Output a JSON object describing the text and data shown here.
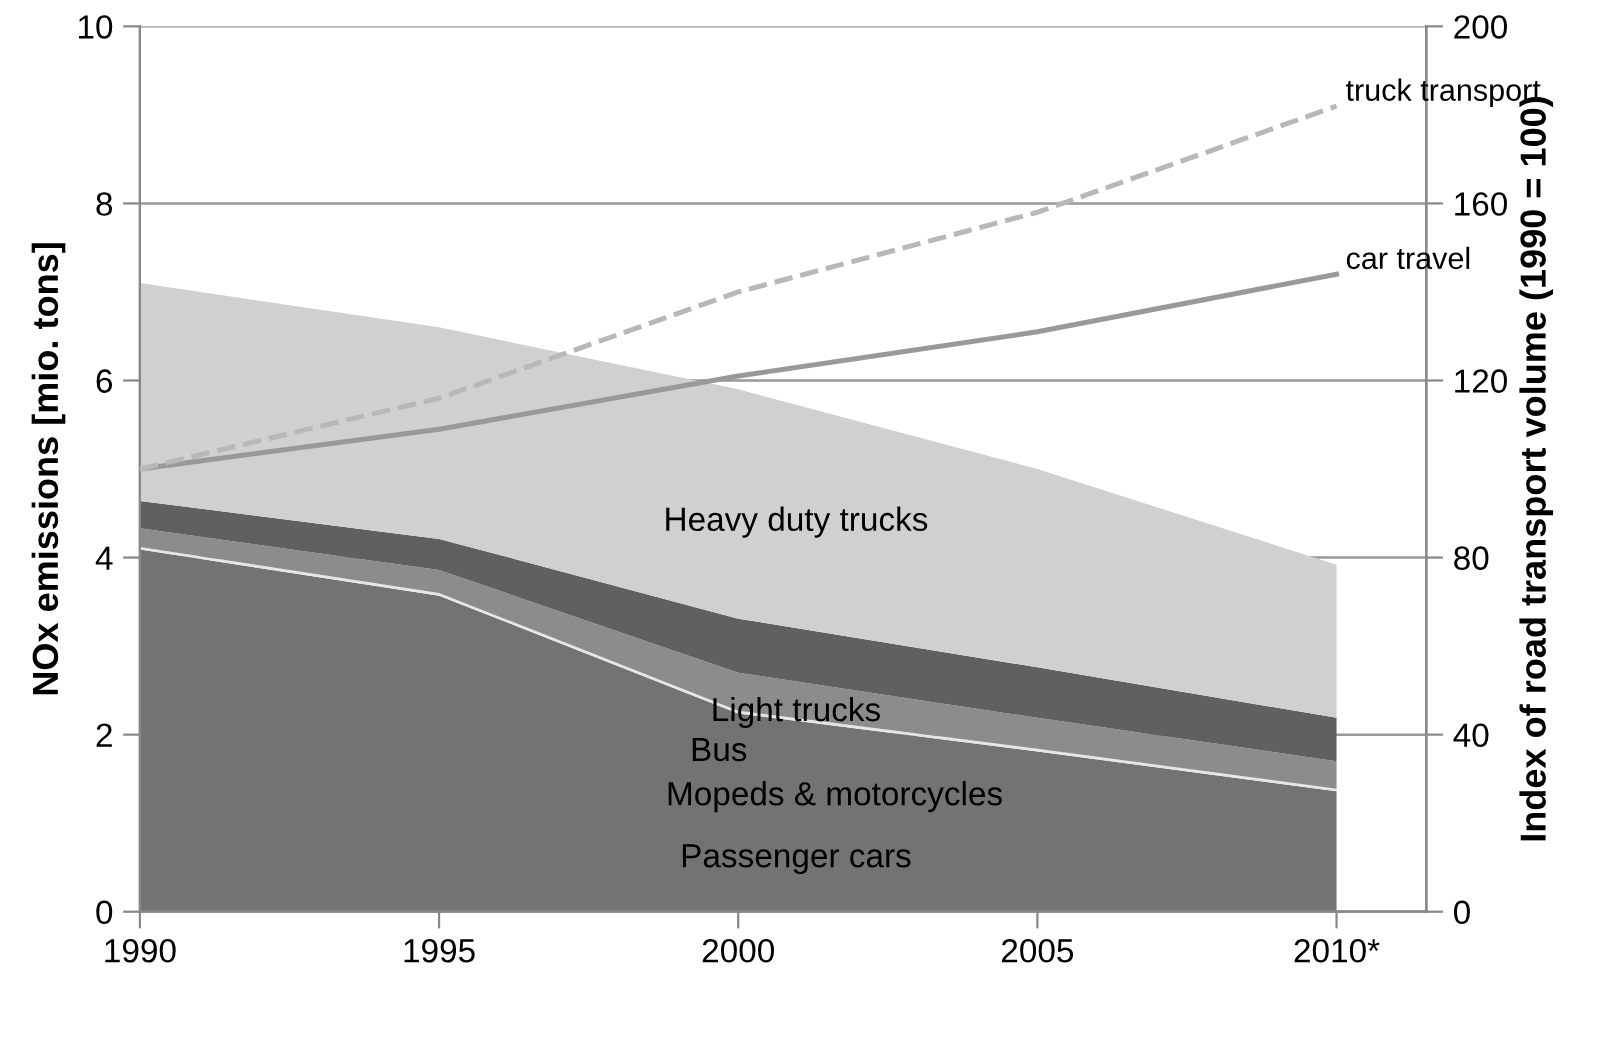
{
  "chart_data": {
    "type": "area",
    "stacked": true,
    "ylabel": "NOx emissions [mio. tons]",
    "y2label": "Index of road transport volume (1990 = 100)",
    "x": [
      1990,
      1995,
      2000,
      2005,
      2010
    ],
    "xlim": [
      1990,
      2011.5
    ],
    "xticks": [
      1990,
      1995,
      2000,
      2005,
      {
        "value": 2010,
        "label": "2010*"
      }
    ],
    "ylim": [
      0,
      10
    ],
    "yticks": [
      0,
      2,
      4,
      6,
      8,
      10
    ],
    "y2lim": [
      0,
      200
    ],
    "y2ticks": [
      0,
      40,
      80,
      120,
      160,
      200
    ],
    "grid": "y",
    "series": [
      {
        "name": "Passenger cars",
        "color": "#737373",
        "values": [
          4.09,
          3.57,
          2.24,
          1.81,
          1.36
        ]
      },
      {
        "name": "Mopeds & motorcycles",
        "color": "#e6e6e6",
        "values": [
          0.03,
          0.03,
          0.03,
          0.03,
          0.03
        ]
      },
      {
        "name": "Bus",
        "color": "#8c8c8c",
        "values": [
          0.21,
          0.26,
          0.43,
          0.35,
          0.31
        ]
      },
      {
        "name": "Light trucks",
        "color": "#606060",
        "values": [
          0.31,
          0.35,
          0.61,
          0.57,
          0.49
        ]
      },
      {
        "name": "Heavy duty trucks",
        "color": "#d0d0d0",
        "values": [
          2.46,
          2.39,
          2.59,
          2.24,
          1.73
        ]
      },
      {
        "name": "car travel",
        "type": "line",
        "axis": "y2",
        "color": "#999999",
        "line_style": "solid",
        "values": [
          100,
          109,
          121,
          131,
          144
        ]
      },
      {
        "name": "truck transport",
        "type": "line",
        "axis": "y2",
        "color": "#b8b8b8",
        "line_style": "dashed",
        "values": [
          100,
          116,
          140,
          158,
          182
        ]
      }
    ]
  }
}
